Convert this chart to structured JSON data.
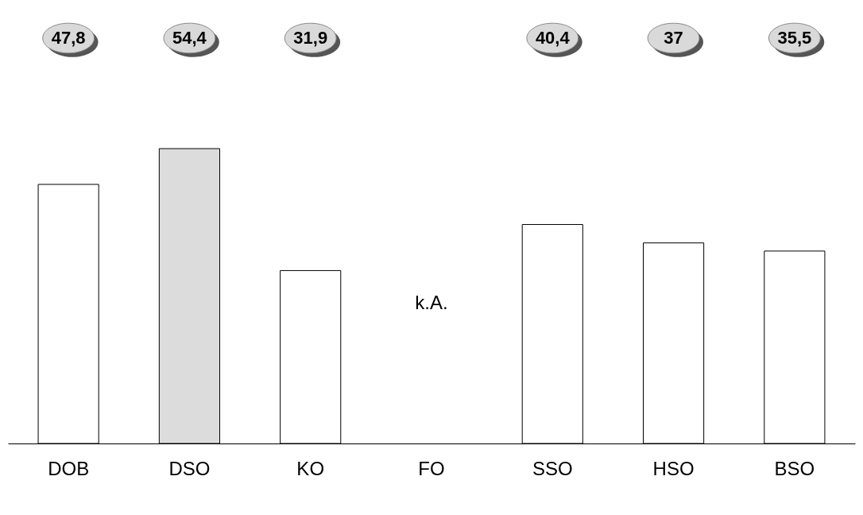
{
  "chart_data": {
    "type": "bar",
    "categories": [
      "DOB",
      "DSO",
      "KO",
      "FO",
      "SSO",
      "HSO",
      "BSO"
    ],
    "values": [
      47.8,
      54.4,
      31.9,
      null,
      40.4,
      37,
      35.5
    ],
    "colors": [
      "#ffffff",
      "#dcdcdc",
      "#ffffff",
      "#ffffff",
      "#ffffff",
      "#ffffff",
      "#ffffff"
    ],
    "value_labels": [
      "47,8",
      "54,4",
      "31,9",
      null,
      "40,4",
      "37",
      "35,5"
    ],
    "annotations": [
      "k.A."
    ],
    "tick_labels": "x",
    "grid": false
  }
}
